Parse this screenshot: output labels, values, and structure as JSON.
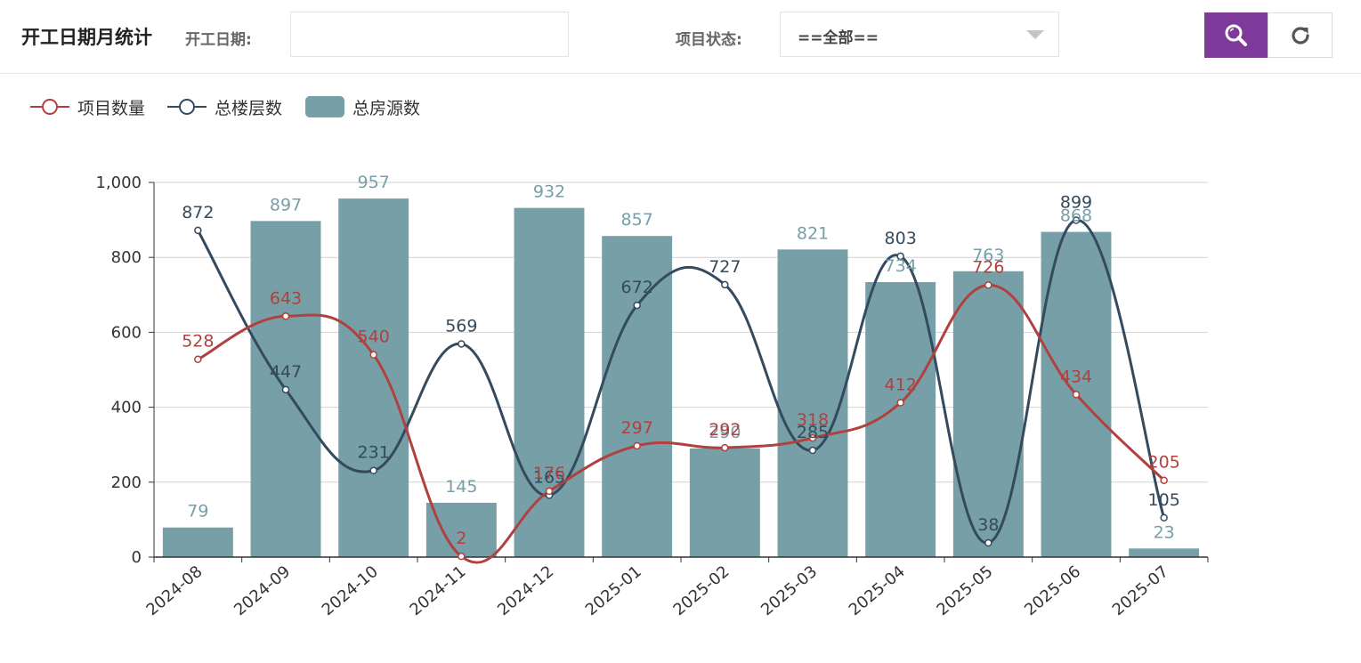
{
  "header": {
    "title": "开工日期月统计",
    "date_label": "开工日期:",
    "date_value": "",
    "status_label": "项目状态:",
    "status_selected": "==全部=="
  },
  "icons": {
    "search": "search-icon",
    "refresh": "refresh-icon"
  },
  "colors": {
    "accent": "#7d3a9a",
    "series_projects": "#b0413e",
    "series_floors": "#344a5e",
    "series_rooms": "#779fa7"
  },
  "chart_data": {
    "type": "bar",
    "categories": [
      "2024-08",
      "2024-09",
      "2024-10",
      "2024-11",
      "2024-12",
      "2025-01",
      "2025-02",
      "2025-03",
      "2025-04",
      "2025-05",
      "2025-06",
      "2025-07"
    ],
    "series": [
      {
        "name": "项目数量",
        "type": "line",
        "smooth": true,
        "values": [
          528,
          643,
          540,
          2,
          176,
          297,
          292,
          318,
          412,
          726,
          434,
          205
        ]
      },
      {
        "name": "总楼层数",
        "type": "line",
        "smooth": true,
        "values": [
          872,
          447,
          231,
          569,
          165,
          672,
          727,
          285,
          803,
          38,
          899,
          105
        ]
      },
      {
        "name": "总房源数",
        "type": "bar",
        "values": [
          79,
          897,
          957,
          145,
          932,
          857,
          290,
          821,
          734,
          763,
          868,
          23
        ]
      }
    ],
    "ylim": [
      0,
      1000
    ],
    "yticks": [
      "0",
      "200",
      "400",
      "600",
      "800",
      "1,000"
    ],
    "legend": "top-left",
    "grid": true
  }
}
